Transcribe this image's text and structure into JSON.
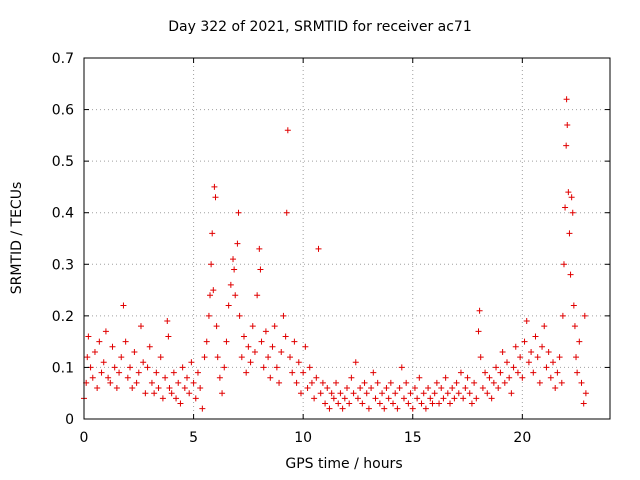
{
  "chart_data": {
    "type": "scatter",
    "title": "Day 322 of 2021, SRMTID for receiver ac71",
    "xlabel": "GPS time / hours",
    "ylabel": "SRMTID / TECUs",
    "xlim": [
      0,
      24
    ],
    "ylim": [
      0,
      0.7
    ],
    "x_ticks": [
      0,
      5,
      10,
      15,
      20
    ],
    "x_tick_labels": [
      "0",
      "5",
      "10",
      "15",
      "20"
    ],
    "y_ticks": [
      0,
      0.1,
      0.2,
      0.3,
      0.4,
      0.5,
      0.6,
      0.7
    ],
    "y_tick_labels": [
      "0",
      "0.1",
      "0.2",
      "0.3",
      "0.4",
      "0.5",
      "0.6",
      "0.7"
    ],
    "grid": true,
    "marker": "+",
    "color": "#e00000",
    "series": [
      {
        "name": "SRMTID",
        "points": [
          [
            0.0,
            0.04
          ],
          [
            0.1,
            0.07
          ],
          [
            0.15,
            0.12
          ],
          [
            0.2,
            0.16
          ],
          [
            0.3,
            0.1
          ],
          [
            0.4,
            0.08
          ],
          [
            0.5,
            0.13
          ],
          [
            0.6,
            0.06
          ],
          [
            0.7,
            0.15
          ],
          [
            0.8,
            0.09
          ],
          [
            0.9,
            0.11
          ],
          [
            1.0,
            0.17
          ],
          [
            1.1,
            0.08
          ],
          [
            1.2,
            0.07
          ],
          [
            1.3,
            0.14
          ],
          [
            1.4,
            0.1
          ],
          [
            1.5,
            0.06
          ],
          [
            1.6,
            0.09
          ],
          [
            1.7,
            0.12
          ],
          [
            1.8,
            0.22
          ],
          [
            1.9,
            0.15
          ],
          [
            2.0,
            0.08
          ],
          [
            2.1,
            0.1
          ],
          [
            2.2,
            0.06
          ],
          [
            2.3,
            0.13
          ],
          [
            2.4,
            0.07
          ],
          [
            2.5,
            0.09
          ],
          [
            2.6,
            0.18
          ],
          [
            2.7,
            0.11
          ],
          [
            2.8,
            0.05
          ],
          [
            2.9,
            0.1
          ],
          [
            3.0,
            0.14
          ],
          [
            3.1,
            0.07
          ],
          [
            3.2,
            0.05
          ],
          [
            3.3,
            0.09
          ],
          [
            3.4,
            0.06
          ],
          [
            3.5,
            0.12
          ],
          [
            3.6,
            0.04
          ],
          [
            3.7,
            0.08
          ],
          [
            3.8,
            0.19
          ],
          [
            3.85,
            0.16
          ],
          [
            3.9,
            0.06
          ],
          [
            4.0,
            0.05
          ],
          [
            4.1,
            0.09
          ],
          [
            4.2,
            0.04
          ],
          [
            4.3,
            0.07
          ],
          [
            4.4,
            0.03
          ],
          [
            4.5,
            0.1
          ],
          [
            4.6,
            0.06
          ],
          [
            4.7,
            0.08
          ],
          [
            4.8,
            0.05
          ],
          [
            4.9,
            0.11
          ],
          [
            5.0,
            0.07
          ],
          [
            5.1,
            0.04
          ],
          [
            5.2,
            0.09
          ],
          [
            5.3,
            0.06
          ],
          [
            5.4,
            0.02
          ],
          [
            5.5,
            0.12
          ],
          [
            5.6,
            0.15
          ],
          [
            5.7,
            0.2
          ],
          [
            5.75,
            0.24
          ],
          [
            5.8,
            0.3
          ],
          [
            5.85,
            0.36
          ],
          [
            5.9,
            0.25
          ],
          [
            5.95,
            0.45
          ],
          [
            6.0,
            0.43
          ],
          [
            6.05,
            0.18
          ],
          [
            6.1,
            0.12
          ],
          [
            6.2,
            0.08
          ],
          [
            6.3,
            0.05
          ],
          [
            6.4,
            0.1
          ],
          [
            6.5,
            0.15
          ],
          [
            6.6,
            0.22
          ],
          [
            6.7,
            0.26
          ],
          [
            6.8,
            0.31
          ],
          [
            6.85,
            0.29
          ],
          [
            6.9,
            0.24
          ],
          [
            7.0,
            0.34
          ],
          [
            7.05,
            0.4
          ],
          [
            7.1,
            0.2
          ],
          [
            7.2,
            0.12
          ],
          [
            7.3,
            0.16
          ],
          [
            7.4,
            0.09
          ],
          [
            7.5,
            0.14
          ],
          [
            7.6,
            0.11
          ],
          [
            7.7,
            0.18
          ],
          [
            7.8,
            0.13
          ],
          [
            7.9,
            0.24
          ],
          [
            8.0,
            0.33
          ],
          [
            8.05,
            0.29
          ],
          [
            8.1,
            0.15
          ],
          [
            8.2,
            0.1
          ],
          [
            8.3,
            0.17
          ],
          [
            8.4,
            0.12
          ],
          [
            8.5,
            0.08
          ],
          [
            8.6,
            0.14
          ],
          [
            8.7,
            0.18
          ],
          [
            8.8,
            0.1
          ],
          [
            8.9,
            0.07
          ],
          [
            9.0,
            0.13
          ],
          [
            9.1,
            0.2
          ],
          [
            9.2,
            0.16
          ],
          [
            9.25,
            0.4
          ],
          [
            9.3,
            0.56
          ],
          [
            9.4,
            0.12
          ],
          [
            9.5,
            0.09
          ],
          [
            9.6,
            0.15
          ],
          [
            9.7,
            0.07
          ],
          [
            9.8,
            0.11
          ],
          [
            9.9,
            0.05
          ],
          [
            10.0,
            0.09
          ],
          [
            10.1,
            0.14
          ],
          [
            10.2,
            0.06
          ],
          [
            10.3,
            0.1
          ],
          [
            10.4,
            0.07
          ],
          [
            10.5,
            0.04
          ],
          [
            10.6,
            0.08
          ],
          [
            10.7,
            0.33
          ],
          [
            10.8,
            0.05
          ],
          [
            10.9,
            0.07
          ],
          [
            11.0,
            0.03
          ],
          [
            11.1,
            0.06
          ],
          [
            11.2,
            0.02
          ],
          [
            11.3,
            0.05
          ],
          [
            11.4,
            0.04
          ],
          [
            11.5,
            0.07
          ],
          [
            11.6,
            0.03
          ],
          [
            11.7,
            0.05
          ],
          [
            11.8,
            0.02
          ],
          [
            11.9,
            0.04
          ],
          [
            12.0,
            0.06
          ],
          [
            12.1,
            0.03
          ],
          [
            12.2,
            0.08
          ],
          [
            12.3,
            0.05
          ],
          [
            12.4,
            0.11
          ],
          [
            12.5,
            0.04
          ],
          [
            12.6,
            0.06
          ],
          [
            12.7,
            0.03
          ],
          [
            12.8,
            0.07
          ],
          [
            12.9,
            0.05
          ],
          [
            13.0,
            0.02
          ],
          [
            13.1,
            0.06
          ],
          [
            13.2,
            0.09
          ],
          [
            13.3,
            0.04
          ],
          [
            13.4,
            0.07
          ],
          [
            13.5,
            0.03
          ],
          [
            13.6,
            0.05
          ],
          [
            13.7,
            0.02
          ],
          [
            13.8,
            0.06
          ],
          [
            13.9,
            0.04
          ],
          [
            14.0,
            0.07
          ],
          [
            14.1,
            0.03
          ],
          [
            14.2,
            0.05
          ],
          [
            14.3,
            0.02
          ],
          [
            14.4,
            0.06
          ],
          [
            14.5,
            0.1
          ],
          [
            14.6,
            0.04
          ],
          [
            14.7,
            0.07
          ],
          [
            14.8,
            0.03
          ],
          [
            14.9,
            0.05
          ],
          [
            15.0,
            0.02
          ],
          [
            15.1,
            0.06
          ],
          [
            15.2,
            0.04
          ],
          [
            15.3,
            0.08
          ],
          [
            15.4,
            0.03
          ],
          [
            15.5,
            0.05
          ],
          [
            15.6,
            0.02
          ],
          [
            15.7,
            0.06
          ],
          [
            15.8,
            0.04
          ],
          [
            15.9,
            0.03
          ],
          [
            16.0,
            0.05
          ],
          [
            16.1,
            0.07
          ],
          [
            16.2,
            0.03
          ],
          [
            16.3,
            0.06
          ],
          [
            16.4,
            0.04
          ],
          [
            16.5,
            0.08
          ],
          [
            16.6,
            0.05
          ],
          [
            16.7,
            0.03
          ],
          [
            16.8,
            0.06
          ],
          [
            16.9,
            0.04
          ],
          [
            17.0,
            0.07
          ],
          [
            17.1,
            0.05
          ],
          [
            17.2,
            0.09
          ],
          [
            17.3,
            0.04
          ],
          [
            17.4,
            0.06
          ],
          [
            17.5,
            0.08
          ],
          [
            17.6,
            0.05
          ],
          [
            17.7,
            0.03
          ],
          [
            17.8,
            0.07
          ],
          [
            17.9,
            0.04
          ],
          [
            18.0,
            0.17
          ],
          [
            18.05,
            0.21
          ],
          [
            18.1,
            0.12
          ],
          [
            18.2,
            0.06
          ],
          [
            18.3,
            0.09
          ],
          [
            18.4,
            0.05
          ],
          [
            18.5,
            0.08
          ],
          [
            18.6,
            0.04
          ],
          [
            18.7,
            0.07
          ],
          [
            18.8,
            0.1
          ],
          [
            18.9,
            0.06
          ],
          [
            19.0,
            0.09
          ],
          [
            19.1,
            0.13
          ],
          [
            19.2,
            0.07
          ],
          [
            19.3,
            0.11
          ],
          [
            19.4,
            0.08
          ],
          [
            19.5,
            0.05
          ],
          [
            19.6,
            0.1
          ],
          [
            19.7,
            0.14
          ],
          [
            19.8,
            0.09
          ],
          [
            19.9,
            0.12
          ],
          [
            20.0,
            0.08
          ],
          [
            20.1,
            0.15
          ],
          [
            20.2,
            0.19
          ],
          [
            20.3,
            0.11
          ],
          [
            20.4,
            0.13
          ],
          [
            20.5,
            0.09
          ],
          [
            20.6,
            0.16
          ],
          [
            20.7,
            0.12
          ],
          [
            20.8,
            0.07
          ],
          [
            20.9,
            0.14
          ],
          [
            21.0,
            0.18
          ],
          [
            21.1,
            0.1
          ],
          [
            21.2,
            0.13
          ],
          [
            21.3,
            0.08
          ],
          [
            21.4,
            0.11
          ],
          [
            21.5,
            0.06
          ],
          [
            21.6,
            0.09
          ],
          [
            21.7,
            0.12
          ],
          [
            21.8,
            0.07
          ],
          [
            21.85,
            0.2
          ],
          [
            21.9,
            0.3
          ],
          [
            21.95,
            0.41
          ],
          [
            22.0,
            0.53
          ],
          [
            22.02,
            0.62
          ],
          [
            22.05,
            0.57
          ],
          [
            22.1,
            0.44
          ],
          [
            22.15,
            0.36
          ],
          [
            22.2,
            0.28
          ],
          [
            22.25,
            0.43
          ],
          [
            22.3,
            0.4
          ],
          [
            22.35,
            0.22
          ],
          [
            22.4,
            0.18
          ],
          [
            22.45,
            0.12
          ],
          [
            22.5,
            0.09
          ],
          [
            22.6,
            0.15
          ],
          [
            22.7,
            0.07
          ],
          [
            22.8,
            0.03
          ],
          [
            22.85,
            0.2
          ],
          [
            22.9,
            0.05
          ]
        ]
      }
    ]
  }
}
